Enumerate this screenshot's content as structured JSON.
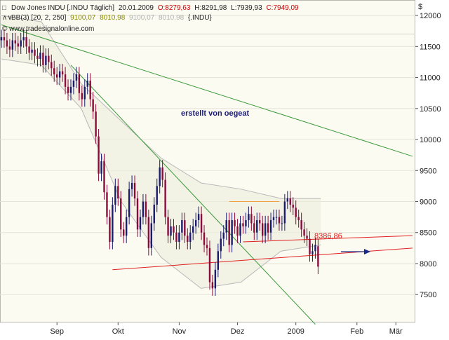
{
  "header": {
    "line1": {
      "symbol": "Dow Jones INDU [.INDU Täglich]",
      "date": "20.01.2009",
      "open": "O:8279,63",
      "high": "H:8291,98",
      "low": "L:7939,93",
      "close": "C:7949,09"
    },
    "line2": {
      "indicator": "BB(3) [20, 2, 250]",
      "band1": "9100,07",
      "band2": "8010,98",
      "band3": "9100,07",
      "band4": "8010,98",
      "symbol": "{.INDU}"
    },
    "copyright": "© www.tradesignalonline.com",
    "currency": "$"
  },
  "annotation_text": "erstellt von oegeat",
  "price_label": "8386,86",
  "colors": {
    "background": "#fbfbf2",
    "up_candle": "#1a1a6e",
    "down_candle": "#8b0a3c",
    "bollinger": "#b8b8b8",
    "green_trend": "#3a9a3a",
    "red_trend": "#e02020",
    "orange_line": "#f0a040",
    "arrow": "#1a2a8a"
  },
  "chart_data": {
    "type": "candlestick",
    "title": "Dow Jones INDU [.INDU Täglich]",
    "ylim": [
      7050,
      12250
    ],
    "yticks": [
      12000,
      11500,
      11000,
      10500,
      10000,
      9500,
      9000,
      8500,
      8000,
      7500
    ],
    "ytick_labels": [
      "12000",
      "11500",
      "11000",
      "10500",
      "10000",
      "9500",
      "9000",
      "8500",
      "8000",
      "7500"
    ],
    "xtick_labels": [
      "Sep",
      "Okt",
      "Nov",
      "Dez",
      "2009",
      "Feb",
      "Mär"
    ],
    "xtick_bars": [
      20,
      42,
      64,
      85,
      106,
      128,
      142
    ],
    "total_bars": 148,
    "close": [
      11650,
      11600,
      11500,
      11450,
      11600,
      11550,
      11500,
      11600,
      11650,
      11500,
      11400,
      11450,
      11350,
      11300,
      11400,
      11200,
      11350,
      11250,
      11150,
      11050,
      11000,
      11100,
      11050,
      10850,
      10750,
      10850,
      10950,
      11050,
      10750,
      10650,
      10850,
      10950,
      10650,
      10450,
      10050,
      9450,
      9650,
      9150,
      8750,
      8350,
      8950,
      9250,
      9050,
      8550,
      8450,
      8750,
      9200,
      9300,
      9050,
      8550,
      8750,
      9000,
      8750,
      8250,
      8650,
      8950,
      9250,
      9550,
      9350,
      8750,
      8450,
      8600,
      8500,
      8350,
      8500,
      8700,
      8450,
      8350,
      8500,
      8600,
      8700,
      8800,
      8500,
      8300,
      8250,
      7700,
      7600,
      7900,
      8200,
      8400,
      8500,
      8700,
      8300,
      8700,
      8600,
      8450,
      8650,
      8600,
      8700,
      8800,
      8650,
      8500,
      8700,
      8650,
      8450,
      8650,
      8500,
      8700,
      8750,
      8750,
      8650,
      8650,
      9000,
      9050,
      8950,
      8900,
      8750,
      8700,
      8550,
      8450,
      8400,
      8150,
      8200,
      8300,
      7950
    ],
    "open": [
      11600,
      11650,
      11600,
      11500,
      11450,
      11600,
      11550,
      11500,
      11600,
      11650,
      11500,
      11400,
      11450,
      11350,
      11300,
      11400,
      11200,
      11350,
      11250,
      11150,
      11050,
      11000,
      11100,
      11050,
      10850,
      10750,
      10850,
      10950,
      11050,
      10750,
      10650,
      10850,
      10950,
      10650,
      10450,
      10050,
      9450,
      9650,
      9150,
      8750,
      8350,
      8950,
      9250,
      9050,
      8550,
      8450,
      8750,
      9200,
      9300,
      9050,
      8550,
      8750,
      9000,
      8750,
      8250,
      8650,
      8950,
      9250,
      9550,
      9350,
      8750,
      8450,
      8600,
      8500,
      8350,
      8500,
      8700,
      8450,
      8350,
      8500,
      8600,
      8700,
      8800,
      8500,
      8300,
      8250,
      7700,
      7600,
      7900,
      8200,
      8400,
      8500,
      8700,
      8300,
      8700,
      8600,
      8450,
      8650,
      8600,
      8700,
      8800,
      8650,
      8500,
      8700,
      8650,
      8450,
      8650,
      8500,
      8700,
      8750,
      8750,
      8650,
      8650,
      9000,
      9050,
      8950,
      8900,
      8750,
      8700,
      8550,
      8450,
      8400,
      8150,
      8200,
      8280
    ],
    "bollinger_upper_approx": [
      12000,
      11900,
      10900,
      10300,
      9700,
      9300,
      9200,
      9050,
      9050
    ],
    "bollinger_lower_approx": [
      11300,
      11200,
      10500,
      9000,
      8100,
      7600,
      7700,
      8200,
      8300
    ],
    "trendlines": [
      {
        "color": "green",
        "from": {
          "bar": 0,
          "value": 11850
        },
        "to": {
          "bar": 148,
          "value": 9730
        }
      },
      {
        "color": "green",
        "from": {
          "bar": 25,
          "value": 11200
        },
        "to": {
          "bar": 113,
          "value": 7020
        }
      },
      {
        "color": "red",
        "from": {
          "bar": 40,
          "value": 7900
        },
        "to": {
          "bar": 148,
          "value": 8250
        }
      },
      {
        "color": "red",
        "from": {
          "bar": 87,
          "value": 8350
        },
        "to": {
          "bar": 148,
          "value": 8450
        }
      },
      {
        "color": "orange",
        "from": {
          "bar": 82,
          "value": 9000
        },
        "to": {
          "bar": 100,
          "value": 9000
        }
      }
    ],
    "horizontal_line": 11700,
    "last_price_label": "8386,86"
  }
}
